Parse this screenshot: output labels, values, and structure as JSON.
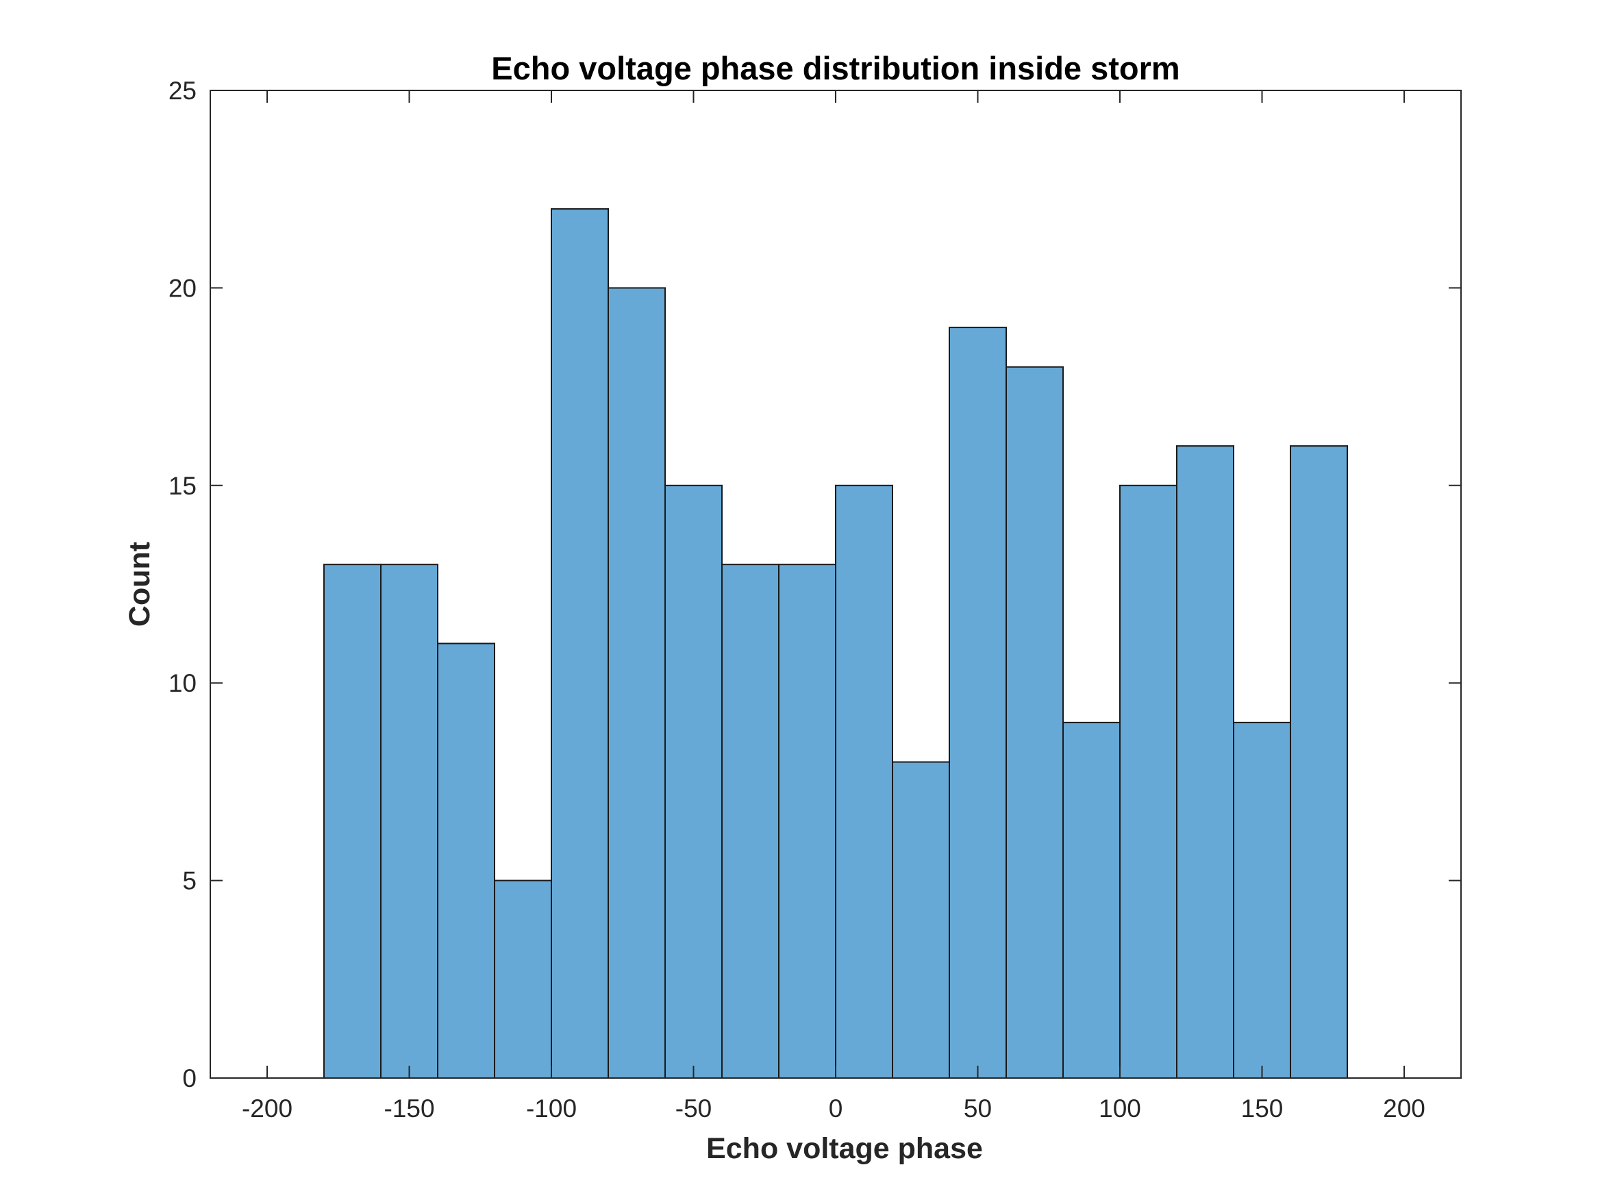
{
  "chart_data": {
    "type": "bar",
    "subtype": "histogram",
    "title": "Echo voltage phase distribution inside storm",
    "xlabel": "Echo voltage phase",
    "ylabel": "Count",
    "xlim": [
      -220,
      220
    ],
    "ylim": [
      0,
      25
    ],
    "xticks": [
      -200,
      -150,
      -100,
      -50,
      0,
      50,
      100,
      150,
      200
    ],
    "xtick_labels": [
      "-200",
      "-150",
      "-100",
      "-50",
      "0",
      "50",
      "100",
      "150",
      "200"
    ],
    "yticks": [
      0,
      5,
      10,
      15,
      20,
      25
    ],
    "ytick_labels": [
      "0",
      "5",
      "10",
      "15",
      "20",
      "25"
    ],
    "bin_edges": [
      -180,
      -160,
      -140,
      -120,
      -100,
      -80,
      -60,
      -40,
      -20,
      0,
      20,
      40,
      60,
      80,
      100,
      120,
      140,
      160,
      180
    ],
    "counts": [
      13,
      13,
      11,
      5,
      22,
      20,
      15,
      13,
      13,
      15,
      8,
      19,
      18,
      9,
      15,
      16,
      9,
      16
    ],
    "bar_color": "#66A9D6",
    "edge_color": "#1A1A1A",
    "grid": false
  }
}
